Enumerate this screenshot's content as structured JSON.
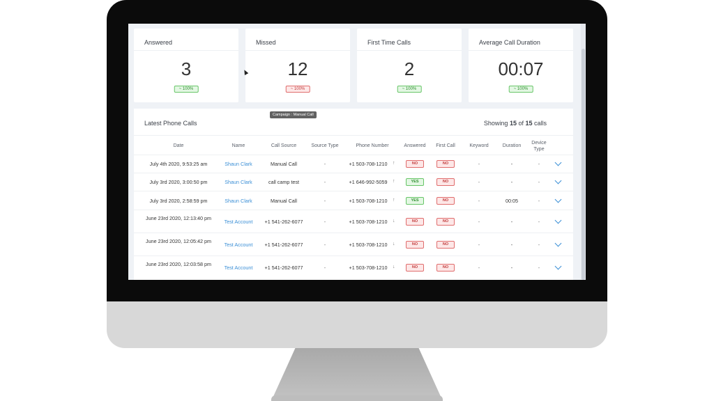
{
  "stats": [
    {
      "title": "Answered",
      "value": "3",
      "badge": "~ 100%",
      "status": "up"
    },
    {
      "title": "Missed",
      "value": "12",
      "badge": "~ 100%",
      "status": "down"
    },
    {
      "title": "First Time Calls",
      "value": "2",
      "badge": "~ 100%",
      "status": "up"
    },
    {
      "title": "Average Call Duration",
      "value": "00:07",
      "badge": "~ 100%",
      "status": "up"
    }
  ],
  "panel": {
    "title": "Latest Phone Calls",
    "count_prefix": "Showing ",
    "count_shown": "15",
    "count_mid": " of ",
    "count_total": "15",
    "count_suffix": " calls"
  },
  "columns": [
    "Date",
    "Name",
    "Call Source",
    "Source Type",
    "Phone Number",
    "Answered",
    "First Call",
    "Keyword",
    "Duration",
    "Device Type"
  ],
  "tooltip": "Campaign : Manual Call",
  "rows": [
    {
      "date": "July 4th 2020, 9:53:25 am",
      "name": "Shaun Clark",
      "source": "Manual Call",
      "source_type": "-",
      "phone": "+1 503-708-1210",
      "direction": "↑",
      "answered": "NO",
      "first_call": "NO",
      "keyword": "-",
      "duration": "-",
      "device": "-"
    },
    {
      "date": "July 3rd 2020, 3:00:50 pm",
      "name": "Shaun Clark",
      "source": "call camp test",
      "source_type": "-",
      "phone": "+1 646-992-5059",
      "direction": "↑",
      "answered": "YES",
      "first_call": "NO",
      "keyword": "-",
      "duration": "-",
      "device": "-"
    },
    {
      "date": "July 3rd 2020, 2:58:59 pm",
      "name": "Shaun Clark",
      "source": "Manual Call",
      "source_type": "-",
      "phone": "+1 503-708-1210",
      "direction": "↑",
      "answered": "YES",
      "first_call": "NO",
      "keyword": "-",
      "duration": "00:05",
      "device": "-"
    },
    {
      "date": "June 23rd 2020, 12:13:40 pm",
      "name": "Test Account",
      "source": "+1 541-262-6077",
      "source_type": "-",
      "phone": "+1 503-708-1210",
      "direction": "↓",
      "answered": "NO",
      "first_call": "NO",
      "keyword": "-",
      "duration": "-",
      "device": "-"
    },
    {
      "date": "June 23rd 2020, 12:05:42 pm",
      "name": "Test Account",
      "source": "+1 541-262-6077",
      "source_type": "-",
      "phone": "+1 503-708-1210",
      "direction": "↓",
      "answered": "NO",
      "first_call": "NO",
      "keyword": "-",
      "duration": "-",
      "device": "-"
    },
    {
      "date": "June 23rd 2020, 12:03:58 pm",
      "name": "Test Account",
      "source": "+1 541-262-6077",
      "source_type": "-",
      "phone": "+1 503-708-1210",
      "direction": "↓",
      "answered": "NO",
      "first_call": "NO",
      "keyword": "-",
      "duration": "-",
      "device": "-"
    }
  ]
}
